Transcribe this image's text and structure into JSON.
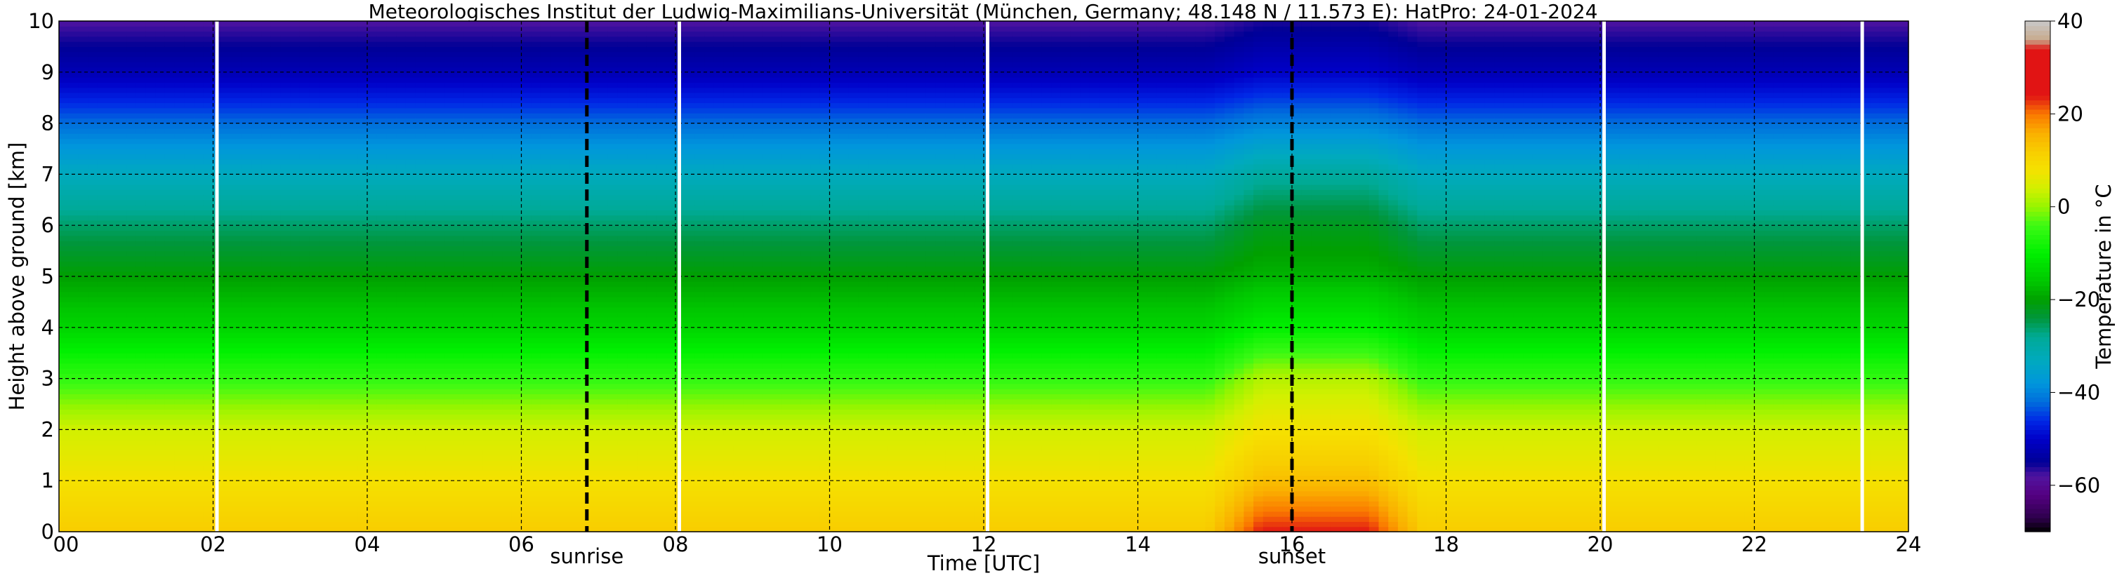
{
  "chart_data": {
    "type": "heatmap",
    "title": "Meteorologisches Institut der Ludwig-Maximilians-Universität (München, Germany; 48.148 N / 11.573 E):    HatPro: 24-01-2024",
    "xlabel": "Time [UTC]",
    "ylabel": "Height above ground [km]",
    "xlim": [
      0,
      24
    ],
    "ylim": [
      0,
      10
    ],
    "x_ticks": [
      "00",
      "02",
      "04",
      "06",
      "08",
      "10",
      "12",
      "14",
      "16",
      "18",
      "20",
      "22",
      "24"
    ],
    "y_ticks": [
      "0",
      "1",
      "2",
      "3",
      "4",
      "5",
      "6",
      "7",
      "8",
      "9",
      "10"
    ],
    "grid": true,
    "colorbar": {
      "label": "Temperature in °C",
      "range": [
        -70,
        40
      ],
      "ticks": [
        "40",
        "20",
        "0",
        "−20",
        "−40",
        "−60"
      ],
      "tick_values": [
        40,
        20,
        0,
        -20,
        -40,
        -60
      ]
    },
    "annotations": [
      {
        "text": "sunrise",
        "x": 6.85
      },
      {
        "text": "sunset",
        "x": 16.0
      }
    ],
    "data_gaps_x": [
      2.05,
      8.05,
      12.05,
      20.05,
      23.4
    ],
    "temperature_by_height_c": [
      {
        "height_km": 0,
        "night": 12,
        "afternoon": 24
      },
      {
        "height_km": 1,
        "night": 8,
        "afternoon": 14
      },
      {
        "height_km": 2,
        "night": 4,
        "afternoon": 8
      },
      {
        "height_km": 3,
        "night": -5,
        "afternoon": 2
      },
      {
        "height_km": 4,
        "night": -14,
        "afternoon": -10
      },
      {
        "height_km": 5,
        "night": -20,
        "afternoon": -18
      },
      {
        "height_km": 6,
        "night": -26,
        "afternoon": -22
      },
      {
        "height_km": 7,
        "night": -33,
        "afternoon": -29
      },
      {
        "height_km": 8,
        "night": -42,
        "afternoon": -40
      },
      {
        "height_km": 9,
        "night": -52,
        "afternoon": -50
      },
      {
        "height_km": 10,
        "night": -58,
        "afternoon": -56
      }
    ]
  }
}
